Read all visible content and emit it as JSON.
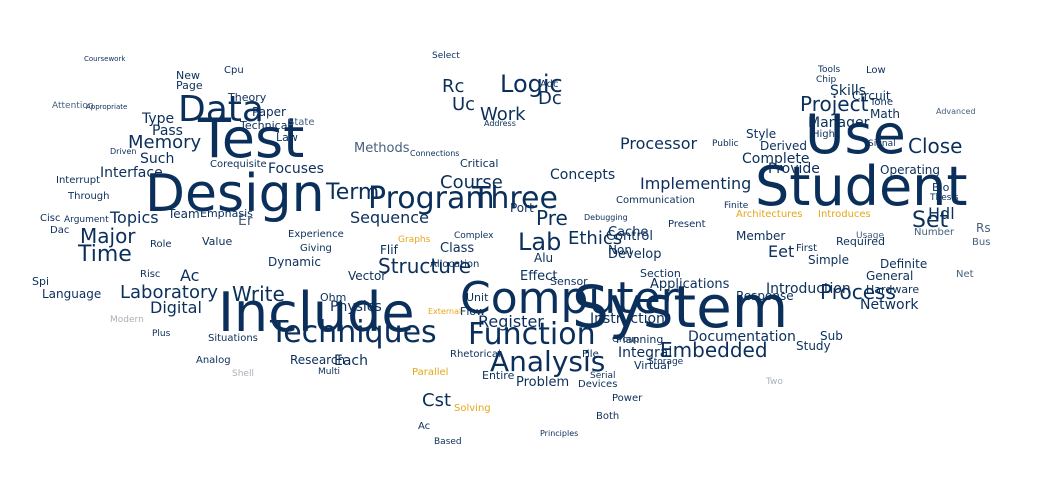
{
  "cloud": {
    "words": {
      "system": "System",
      "include": "Include",
      "design": "Design",
      "student": "Student",
      "test": "Test",
      "computer": "Computer",
      "use": "Use",
      "data": "Data",
      "function": "Function",
      "program": "Program",
      "three": "Three",
      "techniques": "Techniques",
      "analysis": "Analysis",
      "logic": "Logic",
      "lab": "Lab",
      "term": "Term",
      "time": "Time",
      "major": "Major",
      "project": "Project",
      "process": "Process",
      "embedded": "Embedded",
      "course": "Course",
      "memory": "Memory",
      "set": "Set",
      "write": "Write",
      "structure": "Structure",
      "laboratory": "Laboratory",
      "close": "Close",
      "work": "Work",
      "ethics": "Ethics",
      "sequence": "Sequence",
      "topics": "Topics",
      "implementing": "Implementing",
      "cst": "Cst",
      "digital": "Digital",
      "pre": "Pre",
      "hdl": "Hdl",
      "dc": "Dc",
      "rc": "Rc",
      "uc": "Uc",
      "processor": "Processor",
      "concepts": "Concepts",
      "complete": "Complete",
      "provide": "Provide",
      "skills": "Skills",
      "manager": "Manager",
      "physics": "Physics",
      "research": "Research",
      "register": "Register",
      "instruction": "Instruction",
      "documentation": "Documentation",
      "introduction": "Introduction",
      "network": "Network",
      "interface": "Interface",
      "type": "Type",
      "pass": "Pass",
      "such": "Such",
      "team": "Team",
      "ac": "Ac",
      "each": "Each",
      "methods": "Methods",
      "focuses": "Focuses",
      "cache": "Cache",
      "control": "Control",
      "develop": "Develop",
      "effect": "Effect",
      "class": "Class",
      "port": "Port",
      "flif": "Flif",
      "problem": "Problem",
      "integral": "Integral",
      "applications": "Applications",
      "response": "Response",
      "definite": "Definite",
      "general": "General",
      "hardware": "Hardware",
      "study": "Study",
      "sub": "Sub",
      "eet": "Eet",
      "member": "Member",
      "simple": "Simple",
      "derived": "Derived",
      "style": "Style",
      "operating": "Operating",
      "math": "Math",
      "circuit": "Circuit",
      "paper": "Paper",
      "theory": "Theory",
      "technical": "Technical",
      "page": "Page",
      "new": "New",
      "cpu": "Cpu",
      "vector": "Vector",
      "dynamic": "Dynamic",
      "er": "Er",
      "value": "Value",
      "emphasis": "Emphasis",
      "corequisite": "Corequisite",
      "language": "Language",
      "law": "Law",
      "experience": "Experience",
      "giving": "Giving",
      "allocation": "Allocation",
      "complex": "Complex",
      "alu": "Alu",
      "flow": "Flow",
      "unit": "Unit",
      "virtual": "Virtual",
      "planning": "Planning",
      "section": "Section",
      "non": "Non",
      "rs": "Rs",
      "net": "Net",
      "bio": "Bio",
      "thesis": "Thesis",
      "usage": "Usage",
      "two": "Two",
      "shell": "Shell",
      "modern": "Modern",
      "spi": "Spi",
      "risc": "Risc",
      "role": "Role",
      "through": "Through",
      "interrupt": "Interrupt",
      "state": "State",
      "critical": "Critical",
      "sensor": "Sensor",
      "adc": "Adc",
      "addres": "Address",
      "power": "Power",
      "both": "Both",
      "entire": "Entire",
      "multi": "Multi",
      "serial": "Serial",
      "devices": "Devices",
      "file": "File",
      "present": "Present",
      "select": "Select",
      "low": "Low",
      "high": "High",
      "tools": "Tools",
      "chip": "Chip",
      "tone": "Tone",
      "finite": "Finite",
      "public": "Public",
      "signal": "Signal",
      "communication": "Communication",
      "debugging": "Debugging",
      "connections": "Connections",
      "parallel": "Parallel",
      "solving": "Solving",
      "architectures": "Architectures",
      "introduces": "Introduces",
      "required": "Required",
      "first": "First",
      "number": "Number",
      "bus": "Bus",
      "advanced": "Advanced",
      "cisc": "Cisc",
      "dac": "Dac",
      "argument": "Argument",
      "analog": "Analog",
      "situations": "Situations",
      "plus": "Plus",
      "calculus": "Calculus",
      "ohm": "Ohm",
      "rhetorical": "Rhetorical",
      "graphs": "Graphs",
      "groups": "Group",
      "storage": "Storage",
      "cst2": "Cst",
      "ac2": "Ac",
      "based": "Based",
      "principles": "Principles",
      "attention": "Attention",
      "driven": "Driven",
      "appropriate": "Appropriate",
      "external": "External",
      "coursework": "Coursework"
    }
  }
}
